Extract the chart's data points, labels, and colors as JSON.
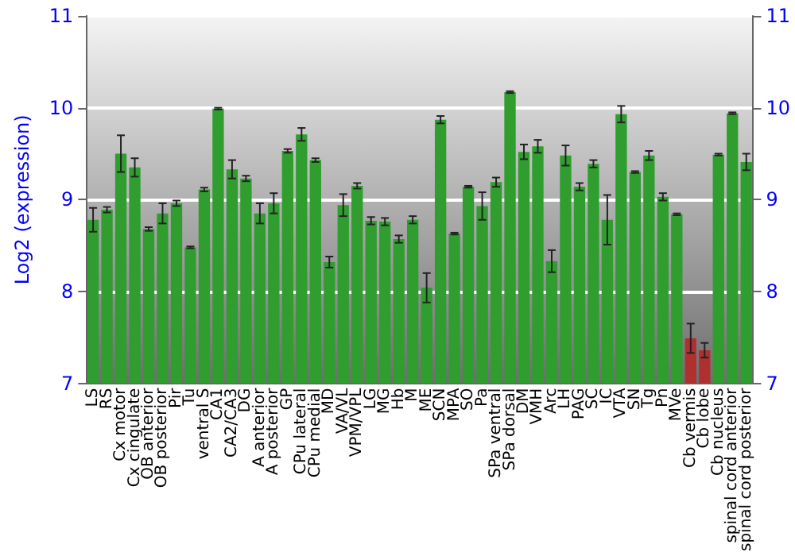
{
  "chart_data": {
    "type": "bar",
    "ylabel": "Log2 (expression)",
    "categories": [
      "LS",
      "RS",
      "Cx motor",
      "Cx cingulate",
      "OB anterior",
      "OB posterior",
      "Pir",
      "Tu",
      "ventral S",
      "CA1",
      "CA2/CA3",
      "DG",
      "A anterior",
      "A posterior",
      "GP",
      "CPu lateral",
      "CPu medial",
      "MD",
      "VA/VL",
      "VPM/VPL",
      "LG",
      "MG",
      "Hb",
      "M",
      "ME",
      "SCN",
      "MPA",
      "SO",
      "Pa",
      "SPa ventral",
      "SPa dorsal",
      "DM",
      "VMH",
      "Arc",
      "LH",
      "PAG",
      "SC",
      "IC",
      "VTA",
      "SN",
      "Tg",
      "Pn",
      "MVe",
      "Cb vermis",
      "Cb lobe",
      "Cb nucleus",
      "spinal cord anterior",
      "spinal cord posterior"
    ],
    "values": [
      8.78,
      8.89,
      9.5,
      9.35,
      8.68,
      8.85,
      8.96,
      8.48,
      9.11,
      9.99,
      9.33,
      9.23,
      8.85,
      8.96,
      9.53,
      9.71,
      9.43,
      8.32,
      8.94,
      9.15,
      8.77,
      8.76,
      8.57,
      8.78,
      8.04,
      9.87,
      8.63,
      9.14,
      8.93,
      9.19,
      10.17,
      9.52,
      9.58,
      8.33,
      9.48,
      9.14,
      9.39,
      8.78,
      9.93,
      9.3,
      9.48,
      9.03,
      8.84,
      7.49,
      7.36,
      9.49,
      9.94,
      9.41
    ],
    "errors": [
      0.13,
      0.03,
      0.2,
      0.1,
      0.02,
      0.11,
      0.03,
      0.01,
      0.02,
      0.01,
      0.1,
      0.03,
      0.11,
      0.11,
      0.02,
      0.07,
      0.02,
      0.06,
      0.12,
      0.03,
      0.04,
      0.04,
      0.04,
      0.04,
      0.16,
      0.04,
      0.01,
      0.01,
      0.15,
      0.05,
      0.01,
      0.08,
      0.07,
      0.12,
      0.11,
      0.04,
      0.04,
      0.27,
      0.09,
      0.01,
      0.05,
      0.04,
      0.01,
      0.16,
      0.08,
      0.01,
      0.01,
      0.09
    ],
    "colors": [
      "#2f9e2f",
      "#2f9e2f",
      "#2f9e2f",
      "#2f9e2f",
      "#2f9e2f",
      "#2f9e2f",
      "#2f9e2f",
      "#2f9e2f",
      "#2f9e2f",
      "#2f9e2f",
      "#2f9e2f",
      "#2f9e2f",
      "#2f9e2f",
      "#2f9e2f",
      "#2f9e2f",
      "#2f9e2f",
      "#2f9e2f",
      "#2f9e2f",
      "#2f9e2f",
      "#2f9e2f",
      "#2f9e2f",
      "#2f9e2f",
      "#2f9e2f",
      "#2f9e2f",
      "#2f9e2f",
      "#2f9e2f",
      "#2f9e2f",
      "#2f9e2f",
      "#2f9e2f",
      "#2f9e2f",
      "#2f9e2f",
      "#2f9e2f",
      "#2f9e2f",
      "#2f9e2f",
      "#2f9e2f",
      "#2f9e2f",
      "#2f9e2f",
      "#2f9e2f",
      "#2f9e2f",
      "#2f9e2f",
      "#2f9e2f",
      "#2f9e2f",
      "#2f9e2f",
      "#b03030",
      "#b03030",
      "#2f9e2f",
      "#2f9e2f",
      "#2f9e2f"
    ],
    "ylim": [
      7,
      11
    ],
    "yticks": [
      7,
      8,
      9,
      10,
      11
    ],
    "y2lim": [
      7,
      11
    ],
    "y2ticks": [
      7,
      8,
      9,
      10,
      11
    ],
    "grid": "y"
  }
}
